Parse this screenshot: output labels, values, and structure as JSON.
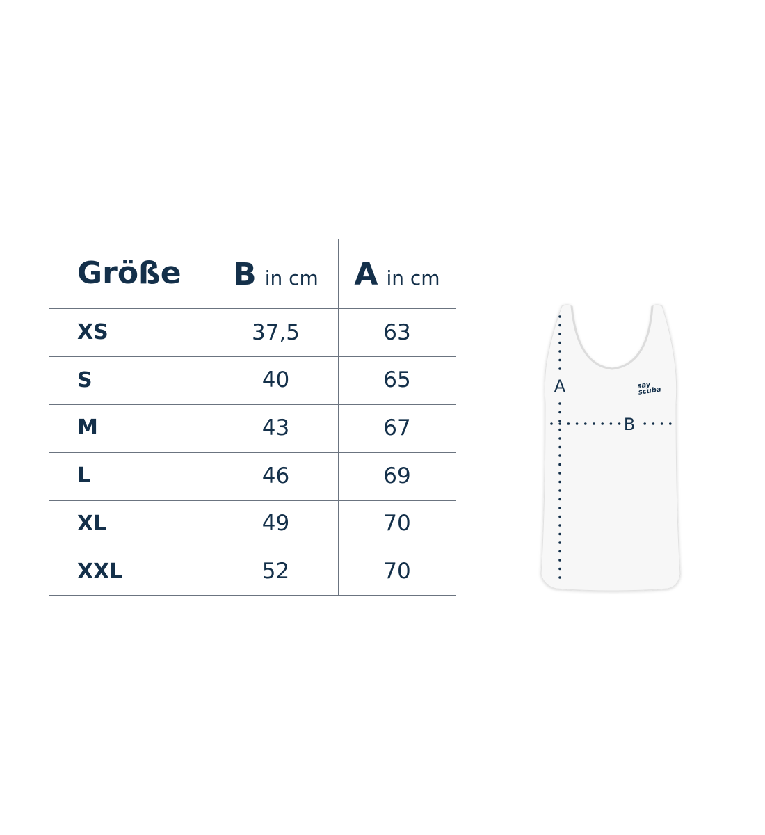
{
  "table": {
    "header": {
      "size": "Größe",
      "col_b_letter": "B",
      "col_b_unit": "in cm",
      "col_a_letter": "A",
      "col_a_unit": "in cm"
    },
    "rows": [
      {
        "size": "XS",
        "b": "37,5",
        "a": "63"
      },
      {
        "size": "S",
        "b": "40",
        "a": "65"
      },
      {
        "size": "M",
        "b": "43",
        "a": "67"
      },
      {
        "size": "L",
        "b": "46",
        "a": "69"
      },
      {
        "size": "XL",
        "b": "49",
        "a": "70"
      },
      {
        "size": "XXL",
        "b": "52",
        "a": "70"
      }
    ]
  },
  "diagram": {
    "label_a": "A",
    "label_b": "B",
    "logo_text": "say scuba"
  },
  "colors": {
    "text": "#14304a",
    "lines": "#6b7480"
  }
}
